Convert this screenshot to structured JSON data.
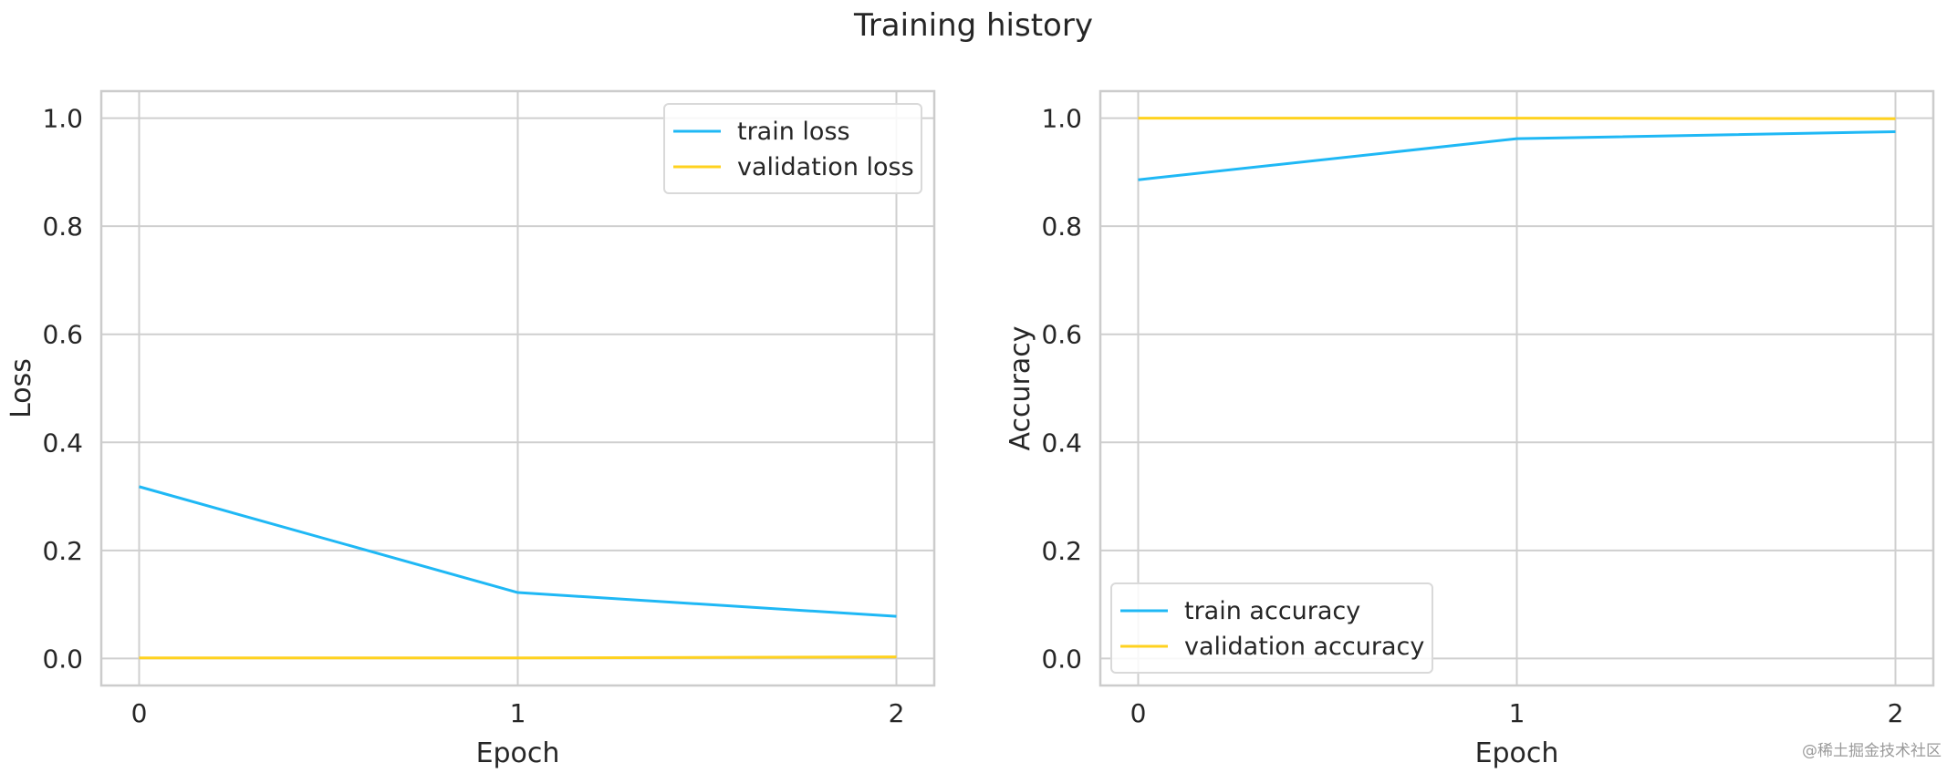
{
  "figure": {
    "title": "Training history",
    "watermark": "@稀土掘金技术社区"
  },
  "colors": {
    "train": "#1fb8f5",
    "validation": "#ffd21f",
    "grid": "#cfcfcf",
    "frame": "#cccccc"
  },
  "chart_data": [
    {
      "type": "line",
      "title": "",
      "xlabel": "Epoch",
      "ylabel": "Loss",
      "x": [
        0,
        1,
        2
      ],
      "xticks": [
        "0",
        "1",
        "2"
      ],
      "yticks": [
        "0.0",
        "0.2",
        "0.4",
        "0.6",
        "0.8",
        "1.0"
      ],
      "xlim": [
        -0.1,
        2.1
      ],
      "ylim": [
        -0.05,
        1.05
      ],
      "grid": true,
      "legend": "top-right",
      "series": [
        {
          "name": "train loss",
          "values": [
            0.318,
            0.122,
            0.078
          ]
        },
        {
          "name": "validation loss",
          "values": [
            0.001,
            0.001,
            0.003
          ]
        }
      ]
    },
    {
      "type": "line",
      "title": "",
      "xlabel": "Epoch",
      "ylabel": "Accuracy",
      "x": [
        0,
        1,
        2
      ],
      "xticks": [
        "0",
        "1",
        "2"
      ],
      "yticks": [
        "0.0",
        "0.2",
        "0.4",
        "0.6",
        "0.8",
        "1.0"
      ],
      "xlim": [
        -0.1,
        2.1
      ],
      "ylim": [
        -0.05,
        1.05
      ],
      "grid": true,
      "legend": "bottom-left",
      "series": [
        {
          "name": "train accuracy",
          "values": [
            0.886,
            0.962,
            0.975
          ]
        },
        {
          "name": "validation accuracy",
          "values": [
            1.0,
            1.0,
            0.999
          ]
        }
      ]
    }
  ]
}
